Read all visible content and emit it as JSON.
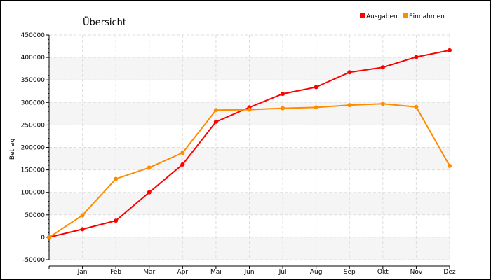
{
  "chart_data": {
    "type": "line",
    "title": "Übersicht",
    "xlabel": "",
    "ylabel": "Betrag",
    "categories": [
      "",
      "Jan",
      "Feb",
      "Mar",
      "Apr",
      "Mai",
      "Jun",
      "Jul",
      "Aug",
      "Sep",
      "Okt",
      "Nov",
      "Dez"
    ],
    "ylim": [
      -50000,
      450000
    ],
    "yticks": [
      -50000,
      0,
      50000,
      100000,
      150000,
      200000,
      250000,
      300000,
      350000,
      400000,
      450000
    ],
    "ytick_labels": [
      "-50000",
      "0",
      "50000",
      "100000",
      "150000",
      "200000",
      "250000",
      "300000",
      "350000",
      "400000",
      "450000"
    ],
    "grid": true,
    "legend_position": "top-right",
    "series": [
      {
        "name": "Ausgaben",
        "color": "#ff0000",
        "values": [
          0,
          18000,
          37000,
          100000,
          162000,
          257000,
          289000,
          319000,
          334000,
          367000,
          378000,
          401000,
          416000
        ]
      },
      {
        "name": "Einnahmen",
        "color": "#ff8c00",
        "values": [
          0,
          49000,
          130000,
          155000,
          188000,
          283000,
          284000,
          287000,
          289000,
          294000,
          297000,
          290000,
          159000
        ]
      }
    ]
  }
}
